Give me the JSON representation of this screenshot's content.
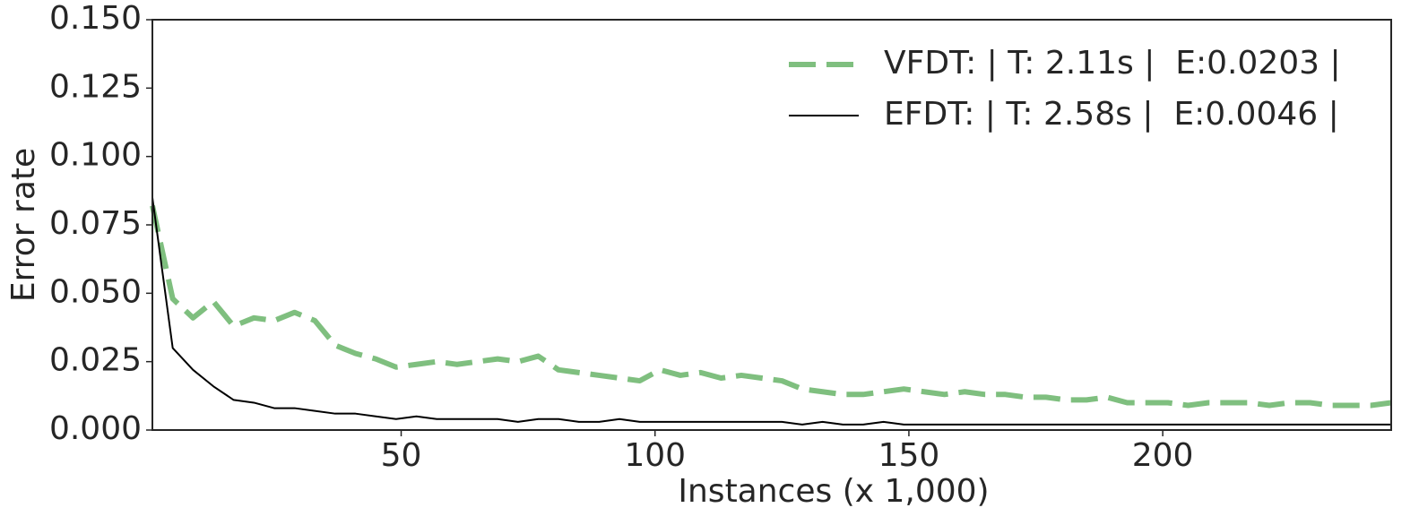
{
  "chart_data": {
    "type": "line",
    "xlabel": "Instances (x 1,000)",
    "ylabel": "Error rate",
    "xlim": [
      1,
      245
    ],
    "ylim": [
      0,
      0.15
    ],
    "xticks": [
      50,
      100,
      150,
      200
    ],
    "yticks": [
      {
        "value": 0,
        "label": "0.000"
      },
      {
        "value": 0.025,
        "label": "0.025"
      },
      {
        "value": 0.05,
        "label": "0.050"
      },
      {
        "value": 0.075,
        "label": "0.075"
      },
      {
        "value": 0.1,
        "label": "0.100"
      },
      {
        "value": 0.125,
        "label": "0.125"
      },
      {
        "value": 0.15,
        "label": "0.150"
      }
    ],
    "legend": "upper right",
    "x": [
      1,
      5,
      9,
      13,
      17,
      21,
      25,
      29,
      33,
      37,
      41,
      45,
      49,
      53,
      57,
      61,
      65,
      69,
      73,
      77,
      81,
      85,
      89,
      93,
      97,
      101,
      105,
      109,
      113,
      117,
      121,
      125,
      129,
      133,
      137,
      141,
      145,
      149,
      153,
      157,
      161,
      165,
      169,
      173,
      177,
      181,
      185,
      189,
      193,
      197,
      201,
      205,
      209,
      213,
      217,
      221,
      225,
      229,
      233,
      237,
      241,
      245
    ],
    "series": [
      {
        "name": "VFDT: | T: 2.11s |  E:0.0203 |",
        "color": "#7fbf7f",
        "linestyle": "dashed",
        "values": [
          0.082,
          0.048,
          0.041,
          0.047,
          0.038,
          0.041,
          0.04,
          0.043,
          0.04,
          0.031,
          0.028,
          0.026,
          0.023,
          0.024,
          0.025,
          0.024,
          0.025,
          0.026,
          0.025,
          0.027,
          0.022,
          0.021,
          0.02,
          0.019,
          0.018,
          0.022,
          0.02,
          0.021,
          0.019,
          0.02,
          0.019,
          0.018,
          0.015,
          0.014,
          0.013,
          0.013,
          0.014,
          0.015,
          0.014,
          0.013,
          0.014,
          0.013,
          0.013,
          0.012,
          0.012,
          0.011,
          0.011,
          0.012,
          0.01,
          0.01,
          0.01,
          0.009,
          0.01,
          0.01,
          0.01,
          0.009,
          0.01,
          0.01,
          0.009,
          0.009,
          0.009,
          0.01
        ]
      },
      {
        "name": "EFDT: | T: 2.58s |  E:0.0046 |",
        "color": "#000000",
        "linestyle": "solid",
        "values": [
          0.085,
          0.03,
          0.022,
          0.016,
          0.011,
          0.01,
          0.008,
          0.008,
          0.007,
          0.006,
          0.006,
          0.005,
          0.004,
          0.005,
          0.004,
          0.004,
          0.004,
          0.004,
          0.003,
          0.004,
          0.004,
          0.003,
          0.003,
          0.004,
          0.003,
          0.003,
          0.003,
          0.003,
          0.003,
          0.003,
          0.003,
          0.003,
          0.002,
          0.003,
          0.002,
          0.002,
          0.003,
          0.002,
          0.002,
          0.002,
          0.002,
          0.002,
          0.002,
          0.002,
          0.002,
          0.002,
          0.002,
          0.002,
          0.002,
          0.002,
          0.002,
          0.002,
          0.002,
          0.002,
          0.002,
          0.002,
          0.002,
          0.002,
          0.002,
          0.002,
          0.002,
          0.002
        ]
      }
    ]
  }
}
